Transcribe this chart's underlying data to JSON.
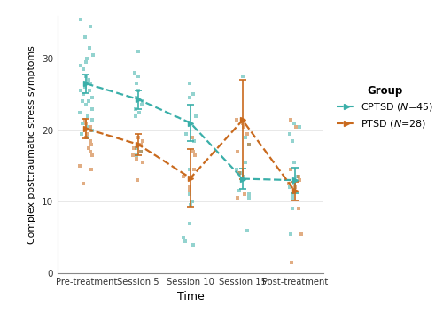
{
  "time_labels": [
    "Pre-treatment",
    "Session 5",
    "Session 10",
    "Session 15",
    "Post-treatment"
  ],
  "time_x": [
    0,
    1,
    2,
    3,
    4
  ],
  "cptsd_mean": [
    26.5,
    24.3,
    21.0,
    13.2,
    13.0
  ],
  "cptsd_ci_lower": [
    25.2,
    23.0,
    18.5,
    11.8,
    11.2
  ],
  "cptsd_ci_upper": [
    27.8,
    25.6,
    23.5,
    14.6,
    14.8
  ],
  "cptsd_color": "#3aafa9",
  "ptsd_mean": [
    20.2,
    18.0,
    13.3,
    21.4,
    11.5
  ],
  "ptsd_ci_lower": [
    18.8,
    16.5,
    9.3,
    13.2,
    10.2
  ],
  "ptsd_ci_upper": [
    21.6,
    19.5,
    17.3,
    27.0,
    12.8
  ],
  "ptsd_color": "#c96a1e",
  "cptsd_scatter": {
    "x": [
      0,
      0,
      0,
      0,
      0,
      0,
      0,
      0,
      0,
      0,
      0,
      0,
      0,
      0,
      0,
      0,
      0,
      0,
      0,
      0,
      0,
      0,
      0,
      0,
      0,
      0,
      0,
      0,
      0,
      1,
      1,
      1,
      1,
      1,
      1,
      1,
      1,
      1,
      1,
      1,
      1,
      1,
      1,
      1,
      2,
      2,
      2,
      2,
      2,
      2,
      2,
      2,
      2,
      2,
      2,
      2,
      2,
      2,
      3,
      3,
      3,
      3,
      3,
      3,
      3,
      3,
      3,
      3,
      3,
      4,
      4,
      4,
      4,
      4,
      4,
      4,
      4,
      4,
      4,
      4,
      4
    ],
    "y": [
      35.5,
      34.5,
      33.0,
      31.5,
      30.5,
      30.0,
      29.5,
      29.0,
      28.5,
      27.5,
      27.0,
      26.5,
      26.0,
      25.5,
      25.0,
      24.5,
      24.0,
      23.5,
      23.0,
      22.5,
      22.0,
      21.5,
      21.0,
      20.5,
      20.0,
      19.5,
      19.0,
      25.5,
      24.0,
      31.0,
      28.0,
      27.5,
      26.5,
      25.5,
      24.5,
      24.0,
      23.5,
      23.0,
      22.5,
      22.0,
      18.0,
      17.5,
      17.0,
      16.5,
      26.5,
      25.0,
      24.5,
      22.0,
      19.5,
      18.5,
      14.5,
      11.0,
      10.0,
      9.5,
      7.0,
      5.0,
      4.5,
      4.0,
      27.5,
      19.0,
      18.0,
      15.5,
      14.5,
      14.0,
      13.5,
      11.5,
      11.0,
      10.5,
      6.0,
      21.0,
      20.5,
      19.5,
      18.5,
      15.5,
      13.5,
      12.5,
      12.0,
      11.0,
      10.5,
      9.0,
      5.5
    ]
  },
  "ptsd_scatter": {
    "x": [
      0,
      0,
      0,
      0,
      0,
      0,
      0,
      0,
      0,
      0,
      0,
      0,
      0,
      0,
      1,
      1,
      1,
      1,
      1,
      1,
      1,
      1,
      1,
      2,
      2,
      2,
      2,
      2,
      2,
      2,
      3,
      3,
      3,
      3,
      3,
      3,
      3,
      3,
      3,
      4,
      4,
      4,
      4,
      4,
      4,
      4,
      4,
      4,
      4
    ],
    "y": [
      21.5,
      21.0,
      20.5,
      20.0,
      19.5,
      19.0,
      18.5,
      18.0,
      17.5,
      17.0,
      16.5,
      15.0,
      14.5,
      12.5,
      19.0,
      18.5,
      18.0,
      17.5,
      17.0,
      16.5,
      16.0,
      15.5,
      13.0,
      19.0,
      17.0,
      16.5,
      14.5,
      13.5,
      12.0,
      11.5,
      21.5,
      21.0,
      20.5,
      19.5,
      18.0,
      17.0,
      14.0,
      11.0,
      10.5,
      21.5,
      20.5,
      14.5,
      13.5,
      13.0,
      12.5,
      12.0,
      9.0,
      5.5,
      1.5
    ]
  },
  "ylabel": "Complex posttraumatic stress symptoms",
  "xlabel": "Time",
  "ylim": [
    0,
    36
  ],
  "yticks": [
    0,
    10,
    20,
    30
  ],
  "background_color": "#ffffff",
  "jitter_amount": 0.13,
  "legend_title": "Group",
  "legend_cptsd": "CPTSD ( Ν =45)",
  "legend_ptsd": "PTSD ( Ν =28)"
}
